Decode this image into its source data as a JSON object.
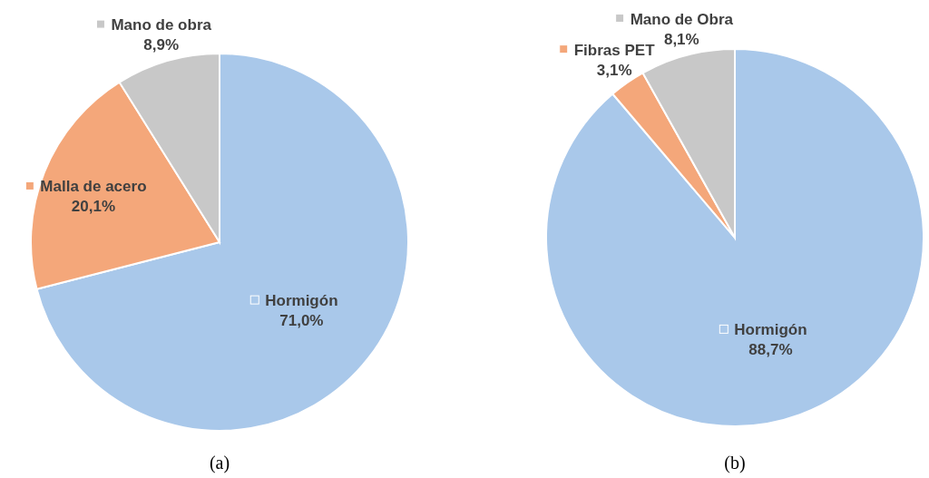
{
  "chart_data": [
    {
      "type": "pie",
      "title": "(a)",
      "categories": [
        "Hormigón",
        "Malla de acero",
        "Mano de obra"
      ],
      "values": [
        71.0,
        20.1,
        8.9
      ],
      "colors": [
        "#a9c8ea",
        "#f4a77a",
        "#c8c8c8"
      ],
      "value_labels": [
        "71,0%",
        "20,1%",
        "8,9%"
      ],
      "legend": "top left"
    },
    {
      "type": "pie",
      "title": "(b)",
      "categories": [
        "Hormigón",
        "Fibras PET",
        "Mano de Obra"
      ],
      "values": [
        88.7,
        3.1,
        8.1
      ],
      "colors": [
        "#a9c8ea",
        "#f4a77a",
        "#c8c8c8"
      ],
      "value_labels": [
        "88,7%",
        "3,1%",
        "8,1%"
      ],
      "legend": "top left"
    }
  ]
}
